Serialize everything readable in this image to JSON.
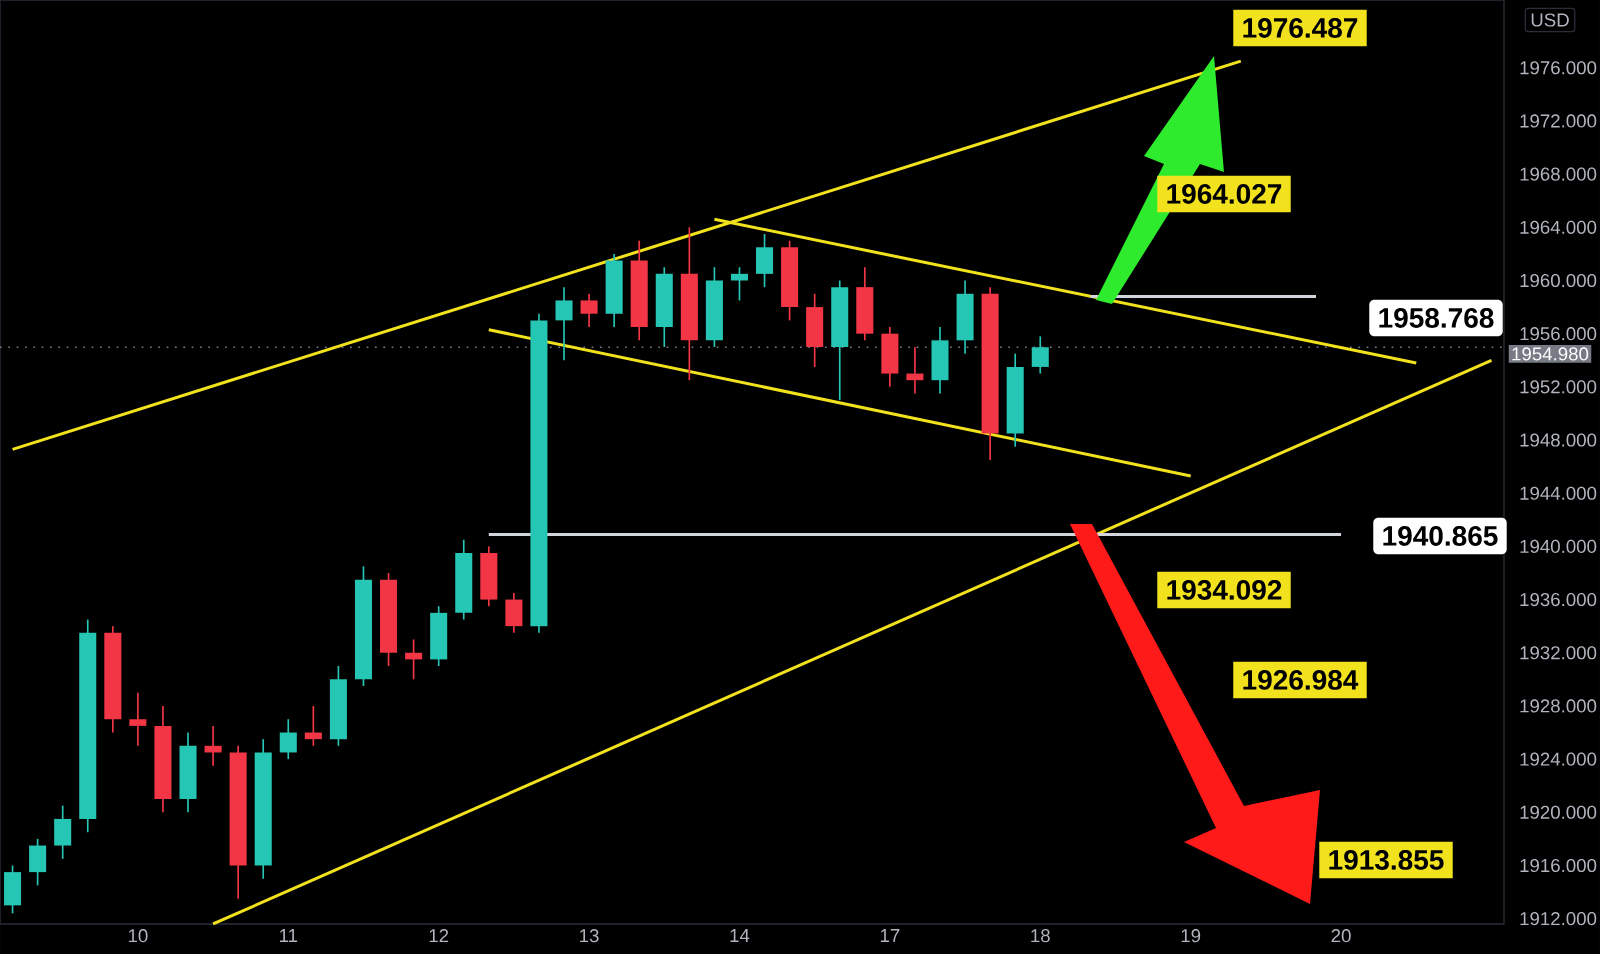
{
  "chart_data": {
    "type": "candlestick",
    "categories": [
      null,
      null,
      null,
      null,
      null,
      "10",
      null,
      null,
      null,
      null,
      null,
      "11",
      null,
      null,
      null,
      null,
      null,
      "12",
      null,
      null,
      null,
      null,
      null,
      "13",
      null,
      null,
      null,
      null,
      null,
      "14",
      null,
      null,
      null,
      null,
      null,
      "17",
      null,
      null,
      null,
      null,
      null,
      "18",
      null,
      null,
      null,
      null,
      null,
      "19",
      null,
      null,
      null,
      null,
      null,
      "20",
      null,
      null,
      null,
      null,
      null,
      null
    ],
    "ohlc": [
      [
        1913,
        1916,
        1912.4,
        1915.5
      ],
      [
        1915.5,
        1918,
        1914.5,
        1917.5
      ],
      [
        1917.5,
        1920.5,
        1916.5,
        1919.5
      ],
      [
        1919.5,
        1934.5,
        1918.5,
        1933.5
      ],
      [
        1933.5,
        1934,
        1926,
        1927
      ],
      [
        1927,
        1929,
        1925,
        1926.5
      ],
      [
        1926.5,
        1928,
        1920,
        1921
      ],
      [
        1921,
        1926,
        1920,
        1925
      ],
      [
        1925,
        1926.5,
        1923.5,
        1924.5
      ],
      [
        1924.5,
        1925,
        1913.5,
        1916
      ],
      [
        1916,
        1925.5,
        1915,
        1924.5
      ],
      [
        1924.5,
        1927,
        1924,
        1926
      ],
      [
        1926,
        1928,
        1925,
        1925.5
      ],
      [
        1925.5,
        1931,
        1925,
        1930
      ],
      [
        1930,
        1938.5,
        1929.5,
        1937.5
      ],
      [
        1937.5,
        1938,
        1931,
        1932
      ],
      [
        1932,
        1933,
        1930,
        1931.5
      ],
      [
        1931.5,
        1935.5,
        1931,
        1935
      ],
      [
        1935,
        1940.5,
        1934.5,
        1939.5
      ],
      [
        1939.5,
        1940,
        1935.5,
        1936
      ],
      [
        1936,
        1936.5,
        1933.5,
        1934
      ],
      [
        1934,
        1957.5,
        1933.5,
        1957
      ],
      [
        1957,
        1959.5,
        1954,
        1958.5
      ],
      [
        1958.5,
        1959,
        1956.5,
        1957.5
      ],
      [
        1957.5,
        1962,
        1956.5,
        1961.5
      ],
      [
        1961.5,
        1963,
        1955.5,
        1956.5
      ],
      [
        1956.5,
        1961,
        1955,
        1960.5
      ],
      [
        1960.5,
        1964,
        1952.5,
        1955.5
      ],
      [
        1955.5,
        1961,
        1955,
        1960
      ],
      [
        1960,
        1961,
        1958.5,
        1960.5
      ],
      [
        1960.5,
        1963.5,
        1959.5,
        1962.5
      ],
      [
        1962.5,
        1963,
        1957,
        1958
      ],
      [
        1958,
        1959,
        1953.5,
        1955
      ],
      [
        1955,
        1960,
        1951,
        1959.5
      ],
      [
        1959.5,
        1961,
        1955.5,
        1956
      ],
      [
        1956,
        1956.5,
        1952,
        1953
      ],
      [
        1953,
        1955,
        1951.5,
        1952.5
      ],
      [
        1952.5,
        1956.5,
        1951.5,
        1955.5
      ],
      [
        1955.5,
        1960,
        1954.5,
        1959
      ],
      [
        1959,
        1959.5,
        1946.5,
        1948.5
      ],
      [
        1948.5,
        1954.5,
        1947.5,
        1953.5
      ],
      [
        1953.5,
        1955.8,
        1953,
        1954.98
      ],
      null,
      null,
      null,
      null,
      null,
      null,
      null,
      null,
      null,
      null,
      null,
      null,
      null,
      null,
      null,
      null,
      null,
      null
    ],
    "colors": [
      "#26c6b5",
      "#26c6b5",
      "#26c6b5",
      "#26c6b5",
      "#f23645",
      "#f23645",
      "#f23645",
      "#26c6b5",
      "#f23645",
      "#f23645",
      "#26c6b5",
      "#26c6b5",
      "#f23645",
      "#26c6b5",
      "#26c6b5",
      "#f23645",
      "#f23645",
      "#26c6b5",
      "#26c6b5",
      "#f23645",
      "#f23645",
      "#26c6b5",
      "#26c6b5",
      "#f23645",
      "#26c6b5",
      "#f23645",
      "#26c6b5",
      "#f23645",
      "#26c6b5",
      "#26c6b5",
      "#26c6b5",
      "#f23645",
      "#f23645",
      "#26c6b5",
      "#f23645",
      "#f23645",
      "#f23645",
      "#26c6b5",
      "#26c6b5",
      "#f23645",
      "#26c6b5",
      "#26c6b5",
      null,
      null,
      null,
      null,
      null,
      null,
      null,
      null,
      null,
      null,
      null,
      null,
      null,
      null,
      null,
      null,
      null,
      null
    ],
    "series": [
      {
        "type": "line",
        "color": "#f2e21d",
        "values": [
          1947.3,
          null,
          null,
          null,
          null,
          null,
          null,
          null,
          null,
          null,
          null,
          null,
          null,
          null,
          null,
          null,
          null,
          null,
          null,
          null,
          null,
          null,
          null,
          null,
          null,
          null,
          null,
          null,
          null,
          null,
          null,
          null,
          null,
          null,
          null,
          null,
          null,
          null,
          null,
          null,
          null,
          null,
          null,
          null,
          null,
          null,
          null,
          null,
          null,
          1976.5,
          null,
          null,
          null,
          null,
          null,
          null,
          null,
          null,
          null,
          null
        ]
      },
      {
        "type": "line",
        "color": "#f2e21d",
        "values": [
          null,
          null,
          null,
          null,
          null,
          null,
          null,
          null,
          1911.6,
          null,
          null,
          null,
          null,
          null,
          null,
          null,
          null,
          null,
          null,
          null,
          null,
          null,
          null,
          null,
          null,
          null,
          null,
          null,
          null,
          null,
          null,
          null,
          null,
          null,
          null,
          null,
          null,
          null,
          null,
          null,
          null,
          null,
          null,
          null,
          null,
          null,
          null,
          null,
          null,
          null,
          null,
          null,
          null,
          null,
          null,
          null,
          null,
          null,
          null,
          1954.0
        ]
      },
      {
        "type": "line",
        "color": "#f2e21d",
        "values": [
          null,
          null,
          null,
          null,
          null,
          null,
          null,
          null,
          null,
          null,
          null,
          null,
          null,
          null,
          null,
          null,
          null,
          null,
          null,
          null,
          null,
          null,
          null,
          null,
          null,
          null,
          null,
          null,
          1964.6,
          null,
          null,
          null,
          null,
          null,
          null,
          null,
          null,
          null,
          null,
          null,
          null,
          null,
          null,
          null,
          null,
          null,
          null,
          null,
          null,
          null,
          null,
          null,
          null,
          null,
          null,
          null,
          1953.8,
          null,
          null,
          null
        ]
      },
      {
        "type": "line",
        "color": "#f2e21d",
        "values": [
          null,
          null,
          null,
          null,
          null,
          null,
          null,
          null,
          null,
          null,
          null,
          null,
          null,
          null,
          null,
          null,
          null,
          null,
          null,
          1956.3,
          null,
          null,
          null,
          null,
          null,
          null,
          null,
          null,
          null,
          null,
          null,
          null,
          null,
          null,
          null,
          null,
          null,
          null,
          null,
          null,
          null,
          null,
          null,
          null,
          null,
          null,
          null,
          1945.3,
          null,
          null,
          null,
          null,
          null,
          null,
          null,
          null,
          null,
          null,
          null,
          null
        ]
      },
      {
        "type": "line",
        "color": "#d1d4dc",
        "values": [
          null,
          null,
          null,
          null,
          null,
          null,
          null,
          null,
          null,
          null,
          null,
          null,
          null,
          null,
          null,
          null,
          null,
          null,
          null,
          null,
          null,
          null,
          null,
          null,
          null,
          null,
          null,
          null,
          null,
          null,
          null,
          null,
          null,
          null,
          null,
          null,
          null,
          null,
          null,
          null,
          null,
          null,
          null,
          1958.8,
          null,
          null,
          null,
          null,
          null,
          null,
          null,
          null,
          1958.8,
          null,
          null,
          null,
          null,
          null,
          null,
          null
        ]
      },
      {
        "type": "line",
        "color": "#d1d4dc",
        "values": [
          null,
          null,
          null,
          null,
          null,
          null,
          null,
          null,
          null,
          null,
          null,
          null,
          null,
          null,
          null,
          null,
          null,
          null,
          null,
          1940.9,
          null,
          null,
          null,
          null,
          null,
          null,
          null,
          null,
          null,
          null,
          null,
          null,
          null,
          null,
          null,
          null,
          null,
          null,
          null,
          null,
          null,
          null,
          null,
          null,
          null,
          null,
          null,
          null,
          null,
          null,
          null,
          null,
          null,
          1940.9,
          null,
          null,
          null,
          null,
          null,
          null
        ]
      }
    ],
    "ylim": [
      1911.6,
      1981.1
    ],
    "yticks": [
      {
        "value": 1912,
        "label": "1912.000"
      },
      {
        "value": 1916,
        "label": "1916.000"
      },
      {
        "value": 1920,
        "label": "1920.000"
      },
      {
        "value": 1924,
        "label": "1924.000"
      },
      {
        "value": 1928,
        "label": "1928.000"
      },
      {
        "value": 1932,
        "label": "1932.000"
      },
      {
        "value": 1936,
        "label": "1936.000"
      },
      {
        "value": 1940,
        "label": "1940.000"
      },
      {
        "value": 1944,
        "label": "1944.000"
      },
      {
        "value": 1948,
        "label": "1948.000"
      },
      {
        "value": 1952,
        "label": "1952.000"
      },
      {
        "value": 1956,
        "label": "1956.000"
      },
      {
        "value": 1960,
        "label": "1960.000"
      },
      {
        "value": 1964,
        "label": "1964.000"
      },
      {
        "value": 1968,
        "label": "1968.000"
      },
      {
        "value": 1972,
        "label": "1972.000"
      },
      {
        "value": 1976,
        "label": "1976.000"
      }
    ],
    "ref_lines": [
      {
        "axis": "y",
        "value": 1954.98,
        "label": "1954.980",
        "color": "#787b86",
        "line_style": "dotted"
      }
    ],
    "annotations": [
      "USD",
      "1958.768",
      "1940.865",
      "1976.487",
      "1964.027",
      "1934.092",
      "1926.984",
      "1913.855"
    ]
  }
}
